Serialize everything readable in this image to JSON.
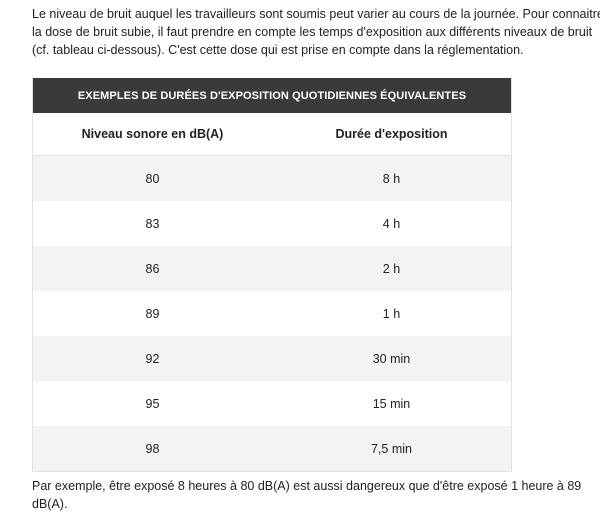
{
  "intro": {
    "lines": [
      "Le niveau de bruit auquel les travailleurs sont soumis peut varier au cours de la journée. Pour connaitre",
      "la dose de bruit subie, il faut prendre en compte les temps d'exposition aux différents niveaux de bruit",
      "(cf. tableau ci-dessous). C'est cette dose qui est prise en compte dans la réglementation."
    ]
  },
  "table": {
    "title": "Exemples de durées d'exposition quotidiennes équivalentes",
    "columns": [
      "Niveau sonore en dB(A)",
      "Durée d'exposition"
    ],
    "rows": [
      [
        80,
        "8 h"
      ],
      [
        83,
        "4 h"
      ],
      [
        86,
        "2 h"
      ],
      [
        89,
        "1 h"
      ],
      [
        92,
        "30 min"
      ],
      [
        95,
        "15 min"
      ],
      [
        98,
        "7,5 min"
      ]
    ]
  },
  "outro": {
    "lines": [
      "Par exemple, être exposé 8 heures à 80 dB(A) est aussi dangereux que d'être exposé 1 heure à 89",
      "dB(A)."
    ]
  }
}
